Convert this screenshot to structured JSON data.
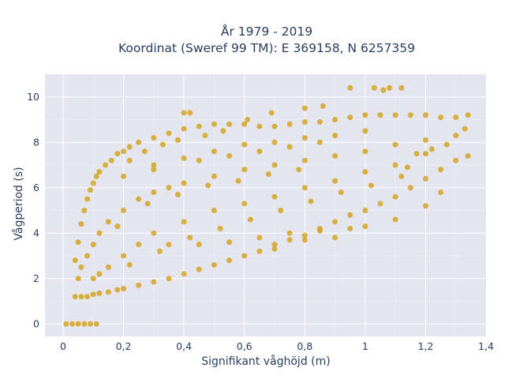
{
  "chart_data": {
    "type": "scatter",
    "title": "År 1979 - 2019",
    "subtitle": "Koordinat (Sweref 99 TM): E 369158, N 6257359",
    "xlabel": "Signifikant våghöjd (m)",
    "ylabel": "Vågperiod (s)",
    "xlim": [
      -0.06,
      1.4
    ],
    "ylim": [
      -0.55,
      11.0
    ],
    "x_ticks": [
      0,
      0.2,
      0.4,
      0.6,
      0.8,
      1,
      1.2,
      1.4
    ],
    "x_tick_labels": [
      "0",
      "0,2",
      "0,4",
      "0,6",
      "0,8",
      "1",
      "1,2",
      "1,4"
    ],
    "y_ticks": [
      0,
      2,
      4,
      6,
      8,
      10
    ],
    "y_tick_labels": [
      "0",
      "2",
      "4",
      "6",
      "8",
      "10"
    ],
    "grid": true,
    "marker_color": "#d4a420",
    "plot_background": "#e5e5f0",
    "points": [
      [
        0.01,
        0
      ],
      [
        0.03,
        0
      ],
      [
        0.05,
        0
      ],
      [
        0.07,
        0
      ],
      [
        0.09,
        0
      ],
      [
        0.11,
        0
      ],
      [
        0.04,
        2.8
      ],
      [
        0.05,
        3.6
      ],
      [
        0.06,
        4.4
      ],
      [
        0.07,
        5.0
      ],
      [
        0.08,
        5.5
      ],
      [
        0.09,
        5.9
      ],
      [
        0.1,
        6.2
      ],
      [
        0.11,
        6.5
      ],
      [
        0.12,
        6.7
      ],
      [
        0.14,
        7.0
      ],
      [
        0.16,
        7.2
      ],
      [
        0.18,
        7.5
      ],
      [
        0.2,
        7.6
      ],
      [
        0.22,
        7.8
      ],
      [
        0.25,
        8.0
      ],
      [
        0.3,
        8.2
      ],
      [
        0.35,
        8.4
      ],
      [
        0.4,
        8.6
      ],
      [
        0.45,
        8.7
      ],
      [
        0.5,
        8.8
      ],
      [
        0.55,
        8.8
      ],
      [
        0.6,
        8.8
      ],
      [
        0.65,
        8.7
      ],
      [
        0.7,
        8.7
      ],
      [
        0.75,
        8.8
      ],
      [
        0.8,
        8.9
      ],
      [
        0.85,
        8.9
      ],
      [
        0.9,
        9.0
      ],
      [
        0.95,
        9.1
      ],
      [
        1.0,
        9.2
      ],
      [
        1.05,
        9.2
      ],
      [
        1.1,
        9.2
      ],
      [
        1.15,
        9.2
      ],
      [
        1.2,
        9.2
      ],
      [
        1.25,
        9.1
      ],
      [
        1.3,
        9.1
      ],
      [
        1.34,
        9.2
      ],
      [
        0.4,
        9.3
      ],
      [
        0.42,
        9.3
      ],
      [
        0.61,
        9.0
      ],
      [
        0.69,
        9.3
      ],
      [
        0.8,
        9.5
      ],
      [
        0.86,
        9.6
      ],
      [
        0.95,
        10.4
      ],
      [
        1.03,
        10.4
      ],
      [
        1.06,
        10.3
      ],
      [
        1.08,
        10.4
      ],
      [
        1.12,
        10.4
      ],
      [
        0.04,
        1.2
      ],
      [
        0.06,
        1.2
      ],
      [
        0.08,
        1.2
      ],
      [
        0.1,
        1.3
      ],
      [
        0.12,
        1.35
      ],
      [
        0.15,
        1.4
      ],
      [
        0.18,
        1.5
      ],
      [
        0.2,
        1.55
      ],
      [
        0.25,
        1.7
      ],
      [
        0.3,
        1.85
      ],
      [
        0.35,
        2.0
      ],
      [
        0.4,
        2.2
      ],
      [
        0.45,
        2.4
      ],
      [
        0.5,
        2.6
      ],
      [
        0.55,
        2.8
      ],
      [
        0.6,
        3.0
      ],
      [
        0.65,
        3.2
      ],
      [
        0.7,
        3.5
      ],
      [
        0.75,
        3.7
      ],
      [
        0.8,
        3.9
      ],
      [
        0.85,
        4.2
      ],
      [
        0.9,
        4.5
      ],
      [
        0.95,
        4.8
      ],
      [
        1.0,
        5.0
      ],
      [
        1.05,
        5.3
      ],
      [
        1.1,
        5.6
      ],
      [
        1.15,
        6.0
      ],
      [
        1.2,
        6.4
      ],
      [
        1.25,
        6.8
      ],
      [
        1.3,
        7.2
      ],
      [
        1.34,
        7.4
      ],
      [
        0.05,
        2.0
      ],
      [
        0.06,
        2.5
      ],
      [
        0.08,
        3.0
      ],
      [
        0.1,
        3.5
      ],
      [
        0.12,
        4.0
      ],
      [
        0.15,
        4.5
      ],
      [
        0.2,
        5.0
      ],
      [
        0.25,
        5.5
      ],
      [
        0.3,
        5.8
      ],
      [
        0.35,
        6.0
      ],
      [
        0.4,
        6.2
      ],
      [
        0.5,
        6.5
      ],
      [
        0.6,
        6.8
      ],
      [
        0.7,
        7.0
      ],
      [
        0.8,
        7.2
      ],
      [
        0.9,
        7.4
      ],
      [
        1.0,
        7.6
      ],
      [
        1.1,
        7.9
      ],
      [
        1.2,
        8.1
      ],
      [
        0.1,
        2.0
      ],
      [
        0.15,
        2.5
      ],
      [
        0.2,
        3.0
      ],
      [
        0.25,
        3.5
      ],
      [
        0.3,
        4.0
      ],
      [
        0.4,
        4.5
      ],
      [
        0.5,
        5.0
      ],
      [
        0.6,
        5.3
      ],
      [
        0.7,
        5.6
      ],
      [
        0.8,
        6.0
      ],
      [
        0.9,
        6.3
      ],
      [
        1.0,
        6.7
      ],
      [
        1.1,
        7.0
      ],
      [
        1.2,
        7.5
      ],
      [
        0.18,
        4.3
      ],
      [
        0.28,
        5.3
      ],
      [
        0.38,
        5.7
      ],
      [
        0.48,
        6.1
      ],
      [
        0.58,
        6.3
      ],
      [
        0.68,
        6.6
      ],
      [
        0.78,
        6.8
      ],
      [
        0.12,
        2.2
      ],
      [
        0.22,
        2.6
      ],
      [
        0.32,
        3.2
      ],
      [
        0.42,
        3.8
      ],
      [
        0.52,
        4.2
      ],
      [
        0.62,
        4.6
      ],
      [
        0.72,
        5.0
      ],
      [
        0.82,
        5.4
      ],
      [
        0.92,
        5.8
      ],
      [
        1.02,
        6.1
      ],
      [
        1.12,
        6.5
      ],
      [
        0.3,
        7.0
      ],
      [
        0.4,
        7.3
      ],
      [
        0.5,
        7.6
      ],
      [
        0.6,
        7.9
      ],
      [
        0.7,
        8.0
      ],
      [
        0.8,
        8.2
      ],
      [
        0.9,
        8.3
      ],
      [
        1.0,
        8.5
      ],
      [
        0.2,
        6.5
      ],
      [
        0.3,
        6.8
      ],
      [
        0.45,
        7.2
      ],
      [
        0.55,
        7.4
      ],
      [
        0.65,
        7.6
      ],
      [
        0.75,
        7.8
      ],
      [
        0.85,
        8.0
      ],
      [
        0.35,
        3.5
      ],
      [
        0.45,
        3.5
      ],
      [
        0.55,
        3.6
      ],
      [
        0.65,
        3.8
      ],
      [
        0.75,
        4.0
      ],
      [
        0.85,
        4.1
      ],
      [
        0.95,
        4.2
      ],
      [
        0.7,
        3.3
      ],
      [
        0.8,
        3.7
      ],
      [
        0.9,
        3.8
      ],
      [
        1.0,
        4.3
      ],
      [
        1.1,
        4.6
      ],
      [
        1.2,
        5.2
      ],
      [
        1.25,
        5.8
      ],
      [
        0.22,
        7.2
      ],
      [
        0.27,
        7.6
      ],
      [
        0.33,
        7.9
      ],
      [
        0.38,
        8.1
      ],
      [
        0.47,
        8.3
      ],
      [
        0.53,
        8.5
      ],
      [
        1.14,
        6.9
      ],
      [
        1.17,
        7.5
      ],
      [
        1.22,
        7.7
      ],
      [
        1.27,
        7.9
      ],
      [
        1.3,
        8.3
      ],
      [
        1.33,
        8.6
      ]
    ]
  }
}
